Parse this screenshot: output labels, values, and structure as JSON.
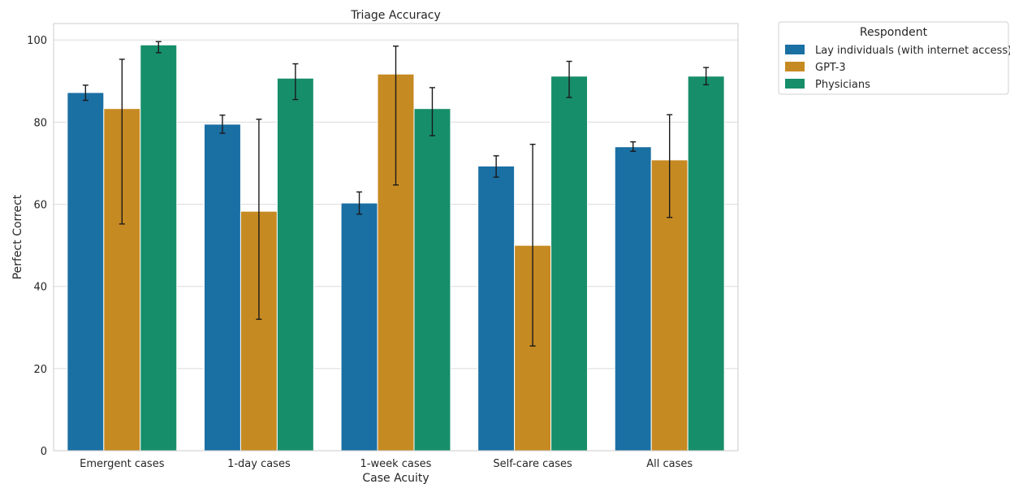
{
  "chart_data": {
    "type": "bar",
    "title": "Triage Accuracy",
    "xlabel": "Case Acuity",
    "ylabel": "Perfect Correct",
    "ylim": [
      0,
      104
    ],
    "yticks": [
      0,
      20,
      40,
      60,
      80,
      100
    ],
    "grid": true,
    "categories": [
      "Emergent cases",
      "1-day cases",
      "1-week cases",
      "Self-care cases",
      "All cases"
    ],
    "legend": {
      "title": "Respondent",
      "placement": "outside-top-right"
    },
    "series": [
      {
        "name": "Lay individuals (with internet access)",
        "color": "#1a6fa3",
        "values": [
          87.2,
          79.5,
          60.3,
          69.3,
          74.0
        ],
        "error_low": [
          85.3,
          77.3,
          57.6,
          66.6,
          72.9
        ],
        "error_high": [
          89.0,
          81.7,
          63.0,
          71.8,
          75.2
        ]
      },
      {
        "name": "GPT-3",
        "color": "#c68a22",
        "values": [
          83.3,
          58.3,
          91.7,
          50.0,
          70.8
        ],
        "error_low": [
          55.2,
          32.0,
          64.7,
          25.5,
          56.8
        ],
        "error_high": [
          95.3,
          80.7,
          98.5,
          74.6,
          81.8
        ]
      },
      {
        "name": "Physicians",
        "color": "#168e6a",
        "values": [
          98.8,
          90.7,
          83.3,
          91.2,
          91.2
        ],
        "error_low": [
          96.9,
          85.5,
          76.7,
          86.0,
          89.1
        ],
        "error_high": [
          99.6,
          94.2,
          88.4,
          94.8,
          93.3
        ]
      }
    ]
  }
}
